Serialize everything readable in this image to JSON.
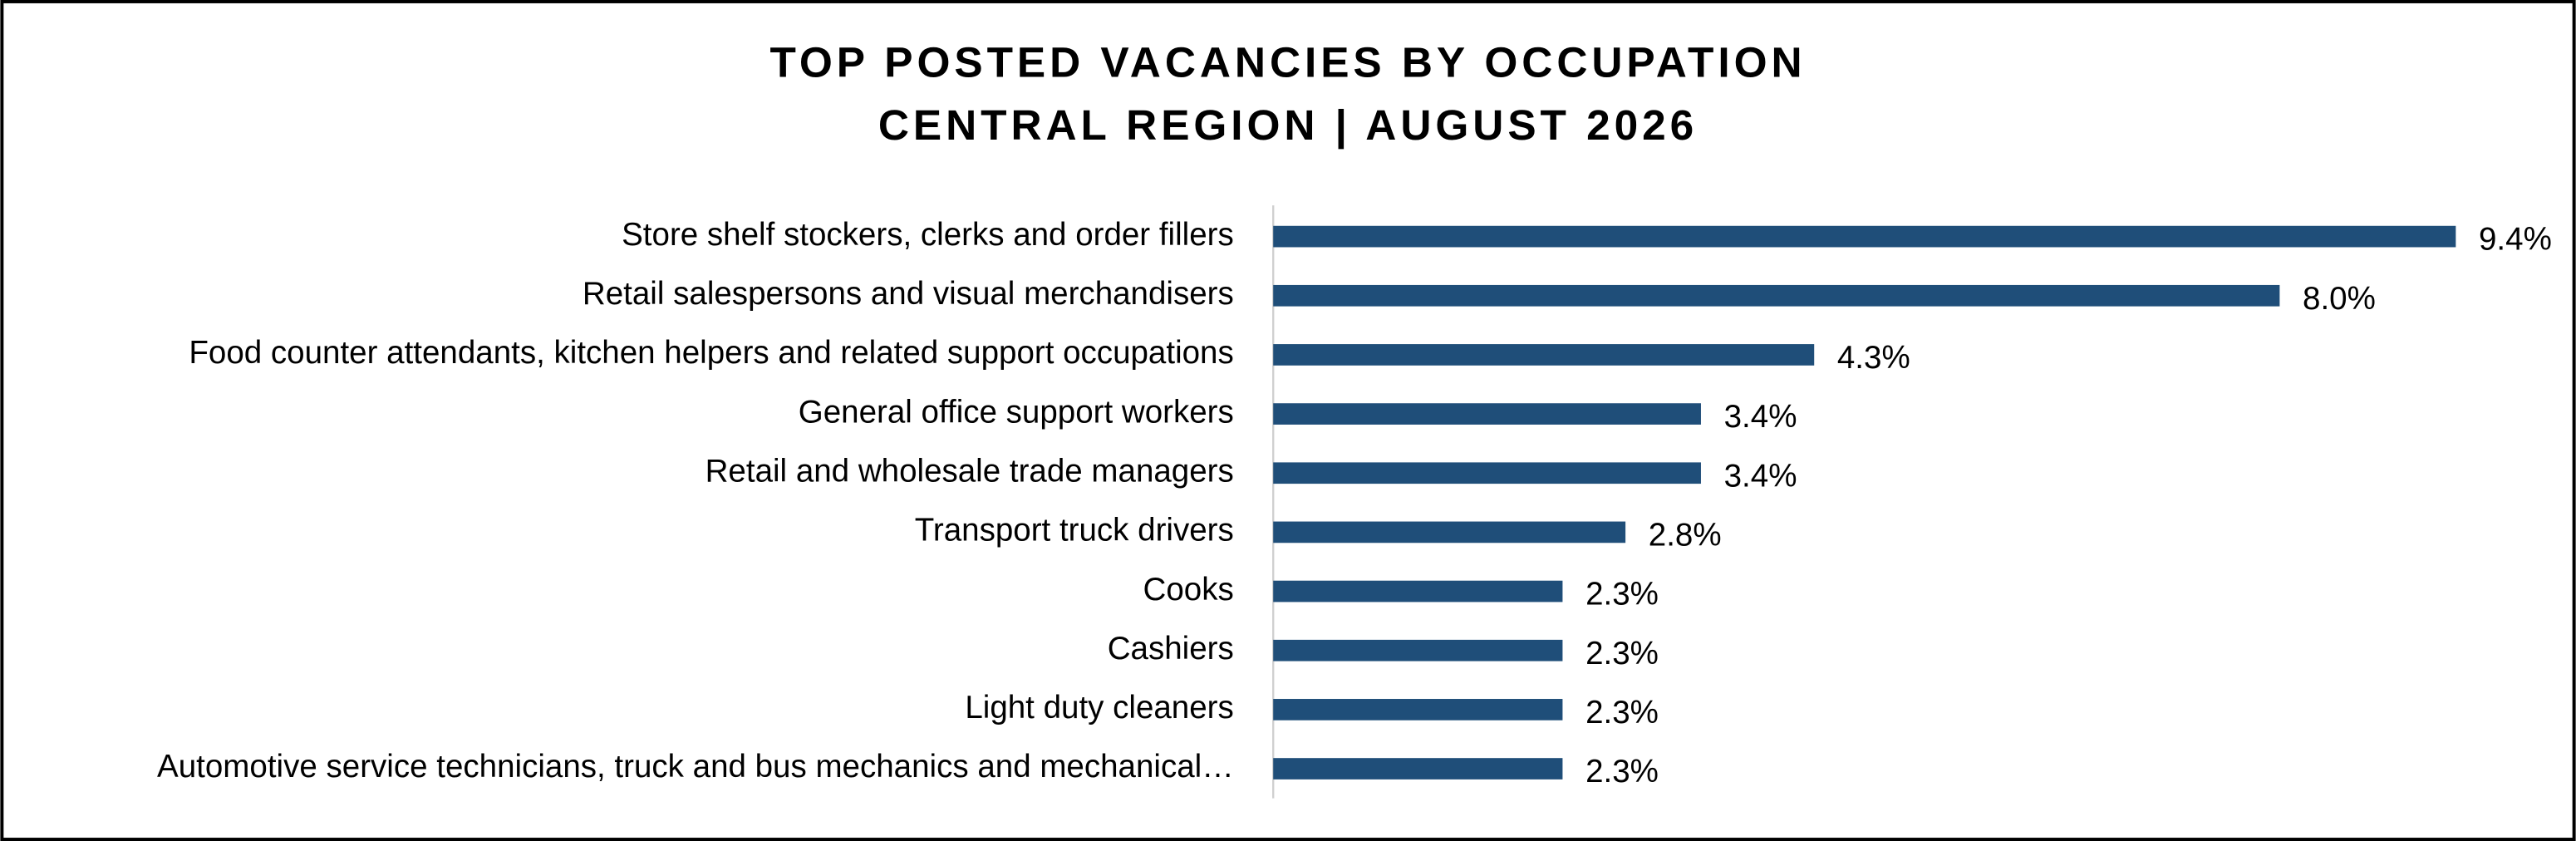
{
  "chart_data": {
    "type": "bar",
    "orientation": "horizontal",
    "title": "TOP POSTED VACANCIES BY OCCUPATION",
    "subtitle": "CENTRAL REGION | AUGUST 2026",
    "categories": [
      "Store shelf stockers, clerks and order fillers",
      "Retail salespersons and visual merchandisers",
      "Food counter attendants, kitchen helpers and related support occupations",
      "General office support workers",
      "Retail and wholesale trade managers",
      "Transport truck drivers",
      "Cooks",
      "Cashiers",
      "Light duty cleaners",
      "Automotive service technicians, truck and bus mechanics and mechanical…"
    ],
    "values": [
      9.4,
      8.0,
      4.3,
      3.4,
      3.4,
      2.8,
      2.3,
      2.3,
      2.3,
      2.3
    ],
    "value_labels": [
      "9.4%",
      "8.0%",
      "4.3%",
      "3.4%",
      "3.4%",
      "2.8%",
      "2.3%",
      "2.3%",
      "2.3%",
      "2.3%"
    ],
    "color": "#1f4e79"
  }
}
